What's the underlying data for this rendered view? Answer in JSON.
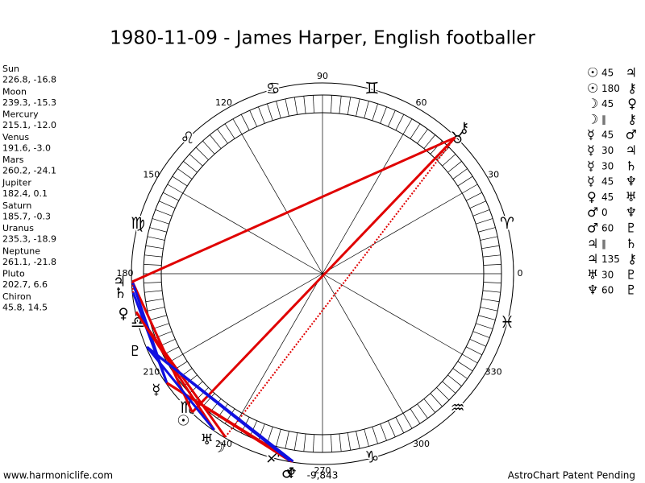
{
  "title": "1980-11-09 - James Harper, English footballer",
  "planets": [
    {
      "name": "Sun",
      "coords": "226.8, -16.8",
      "longitude": 226.8,
      "glyph": "☉"
    },
    {
      "name": "Moon",
      "coords": "239.3, -15.3",
      "longitude": 239.3,
      "glyph": "☽"
    },
    {
      "name": "Mercury",
      "coords": "215.1, -12.0",
      "longitude": 215.1,
      "glyph": "☿"
    },
    {
      "name": "Venus",
      "coords": "191.6, -3.0",
      "longitude": 191.6,
      "glyph": "♀"
    },
    {
      "name": "Mars",
      "coords": "260.2, -24.1",
      "longitude": 260.2,
      "glyph": "♂"
    },
    {
      "name": "Jupiter",
      "coords": "182.4, 0.1",
      "longitude": 182.4,
      "glyph": "♃"
    },
    {
      "name": "Saturn",
      "coords": "185.7, -0.3",
      "longitude": 185.7,
      "glyph": "♄"
    },
    {
      "name": "Uranus",
      "coords": "235.3, -18.9",
      "longitude": 235.3,
      "glyph": "♅"
    },
    {
      "name": "Neptune",
      "coords": "261.1, -21.8",
      "longitude": 261.1,
      "glyph": "♆"
    },
    {
      "name": "Pluto",
      "coords": "202.7, 6.6",
      "longitude": 202.7,
      "glyph": "♇"
    },
    {
      "name": "Chiron",
      "coords": "45.8, 14.5",
      "longitude": 45.8,
      "glyph": "⚷"
    }
  ],
  "aspects": [
    {
      "p1": "☉",
      "aspect": 45,
      "p2": "♃",
      "color": "#e00000",
      "line": "solid"
    },
    {
      "p1": "☉",
      "aspect": 180,
      "p2": "⚷",
      "color": "#e00000",
      "line": "solid"
    },
    {
      "p1": "☽",
      "aspect": 45,
      "p2": "♀",
      "color": "#e00000",
      "line": "solid"
    },
    {
      "p1": "☽",
      "aspect": "∥",
      "p2": "⚷",
      "color": "#e00000",
      "line": "dotted"
    },
    {
      "p1": "☿",
      "aspect": 45,
      "p2": "♂",
      "color": "#e00000",
      "line": "solid"
    },
    {
      "p1": "☿",
      "aspect": 30,
      "p2": "♃",
      "color": "#1010e0",
      "line": "solid"
    },
    {
      "p1": "☿",
      "aspect": 30,
      "p2": "♄",
      "color": "#1010e0",
      "line": "solid"
    },
    {
      "p1": "☿",
      "aspect": 45,
      "p2": "♆",
      "color": "#e00000",
      "line": "solid"
    },
    {
      "p1": "♀",
      "aspect": 45,
      "p2": "♅",
      "color": "#e00000",
      "line": "solid"
    },
    {
      "p1": "♂",
      "aspect": 0,
      "p2": "♆",
      "color": "#e00000",
      "line": "solid"
    },
    {
      "p1": "♂",
      "aspect": 60,
      "p2": "♇",
      "color": "#1010e0",
      "line": "solid"
    },
    {
      "p1": "♃",
      "aspect": "∥",
      "p2": "♄",
      "color": "#e00000",
      "line": "dotted"
    },
    {
      "p1": "♃",
      "aspect": 135,
      "p2": "⚷",
      "color": "#e00000",
      "line": "solid"
    },
    {
      "p1": "♅",
      "aspect": 30,
      "p2": "♇",
      "color": "#1010e0",
      "line": "solid"
    },
    {
      "p1": "♆",
      "aspect": 60,
      "p2": "♇",
      "color": "#1010e0",
      "line": "solid"
    }
  ],
  "degree_labels": [
    0,
    30,
    60,
    90,
    120,
    150,
    180,
    210,
    240,
    270,
    300,
    330
  ],
  "signs": [
    "♈",
    "♉",
    "♊",
    "♋",
    "♌",
    "♍",
    "♎",
    "♏",
    "♐",
    "♑",
    "♒",
    "♓"
  ],
  "score": "-9,843",
  "footer_left": "www.harmoniclife.com",
  "footer_right": "AstroChart Patent Pending"
}
